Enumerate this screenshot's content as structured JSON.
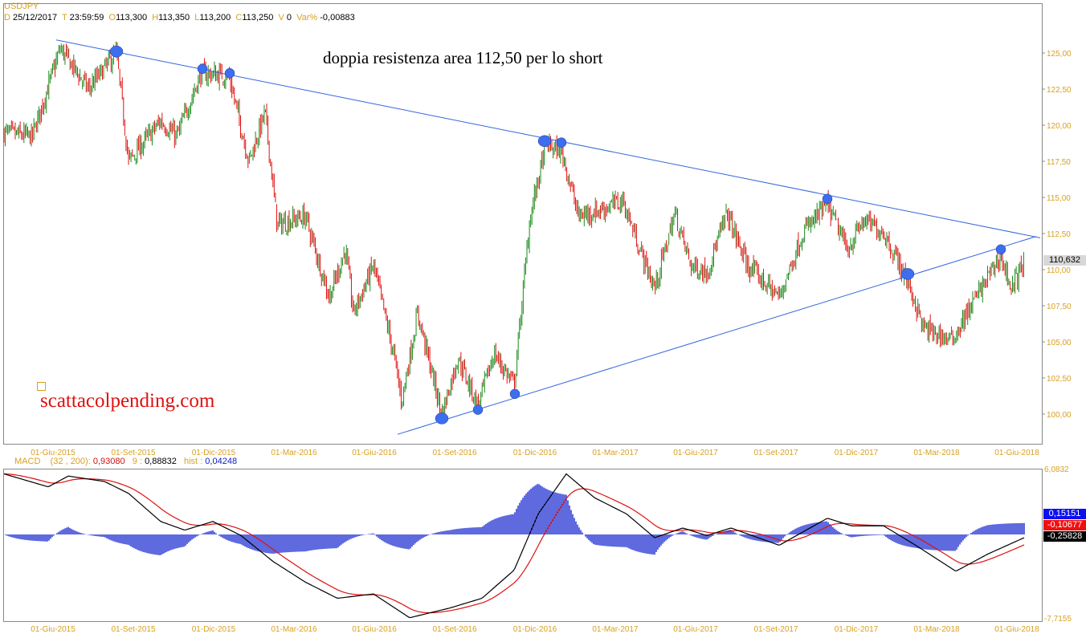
{
  "header": {
    "symbol": "USDJPY",
    "d_label": "D",
    "date": "25/12/2017",
    "t_label": "T",
    "time": "23:59:59",
    "o_label": "O",
    "open": "113,300",
    "h_label": "H",
    "high": "113,350",
    "l_label": "L",
    "low": "113,200",
    "c_label": "C",
    "close": "113,250",
    "v_label": "V",
    "volume": "0",
    "var_label": "Var%",
    "var": "-0,00883"
  },
  "macd_header": {
    "label": "MACD",
    "params": "(32 , 200):",
    "macd": "0,93080",
    "sig_label": "9 :",
    "signal": "0,88832",
    "hist_label": "hist :",
    "hist": "0,04248"
  },
  "annotation": "doppia resistenza area 112,50 per lo short",
  "watermark": "scattacolpending.com",
  "price_tag": "110,632",
  "macd_tags": {
    "hist": "0,15151",
    "signal": "-0,10677",
    "macd": "-0,25828"
  },
  "colors": {
    "up": "#1a8a1a",
    "down": "#e01010",
    "trend": "#3366dd",
    "circle": "#3d6ef0",
    "axis_text": "#d9a020"
  },
  "chart_data": {
    "type": "candlestick",
    "x_unit": "quarters since 01-Giu-2015",
    "x_ticks": [
      "01-Giu-2015",
      "01-Set-2015",
      "01-Dic-2015",
      "01-Mar-2016",
      "01-Giu-2016",
      "01-Set-2016",
      "01-Dic-2016",
      "01-Mar-2017",
      "01-Giu-2017",
      "01-Set-2017",
      "01-Dic-2017",
      "01-Mar-2018",
      "01-Giu-2018"
    ],
    "y_ticks": [
      "125,00",
      "122,50",
      "120,00",
      "117,50",
      "115,00",
      "112,50",
      "110,00",
      "107,50",
      "105,00",
      "102,50",
      "100,00"
    ],
    "ylim": [
      98.5,
      126.2
    ],
    "price_path": [
      [
        -0.61,
        119.5
      ],
      [
        -0.26,
        119.2
      ],
      [
        0.09,
        125.3
      ],
      [
        0.44,
        122.5
      ],
      [
        0.79,
        125
      ],
      [
        0.94,
        117.5
      ],
      [
        1.34,
        120.3
      ],
      [
        1.54,
        119.2
      ],
      [
        1.84,
        123.6
      ],
      [
        2.19,
        123.4
      ],
      [
        2.44,
        117.5
      ],
      [
        2.64,
        120.9
      ],
      [
        2.79,
        113.1
      ],
      [
        3.14,
        113.7
      ],
      [
        3.44,
        108.1
      ],
      [
        3.64,
        111.4
      ],
      [
        3.74,
        107
      ],
      [
        3.99,
        110.3
      ],
      [
        4.24,
        104.2
      ],
      [
        4.34,
        100.9
      ],
      [
        4.54,
        107
      ],
      [
        4.84,
        100
      ],
      [
        5.04,
        103.9
      ],
      [
        5.29,
        100.6
      ],
      [
        5.49,
        104.2
      ],
      [
        5.74,
        102
      ],
      [
        5.94,
        113.7
      ],
      [
        6.14,
        118.7
      ],
      [
        6.34,
        118.1
      ],
      [
        6.54,
        113.7
      ],
      [
        6.84,
        114.2
      ],
      [
        7.09,
        114.8
      ],
      [
        7.34,
        110.9
      ],
      [
        7.49,
        108.7
      ],
      [
        7.74,
        113.9
      ],
      [
        7.94,
        110.3
      ],
      [
        8.14,
        109.8
      ],
      [
        8.39,
        113.9
      ],
      [
        8.64,
        110.3
      ],
      [
        9.04,
        108.1
      ],
      [
        9.34,
        112.6
      ],
      [
        9.64,
        114.5
      ],
      [
        9.89,
        111.4
      ],
      [
        10.09,
        113.4
      ],
      [
        10.34,
        112.6
      ],
      [
        10.64,
        109.2
      ],
      [
        10.84,
        105.9
      ],
      [
        11.19,
        105.1
      ],
      [
        11.44,
        107.6
      ],
      [
        11.64,
        109.5
      ],
      [
        11.79,
        110.9
      ],
      [
        11.94,
        108.7
      ],
      [
        12.09,
        110.6
      ]
    ],
    "trendlines": [
      {
        "name": "resistance",
        "from": [
          0.04,
          125.9
        ],
        "to": [
          12.29,
          112.2
        ]
      },
      {
        "name": "support",
        "from": [
          4.29,
          98.6
        ],
        "to": [
          12.24,
          112.3
        ]
      }
    ],
    "touch_points": [
      [
        0.79,
        125.1
      ],
      [
        1.86,
        123.9
      ],
      [
        2.2,
        123.6
      ],
      [
        4.84,
        99.7
      ],
      [
        5.29,
        100.3
      ],
      [
        5.75,
        101.4
      ],
      [
        6.12,
        118.9
      ],
      [
        6.33,
        118.8
      ],
      [
        9.64,
        114.9
      ],
      [
        10.64,
        109.7
      ],
      [
        11.8,
        111.4
      ]
    ],
    "macd": {
      "ylim": [
        -7.7155,
        6.0832
      ],
      "axis_labels": [
        "6,0832",
        "-7,7155"
      ],
      "path": [
        [
          -0.61,
          5.6
        ],
        [
          -0.06,
          4.4
        ],
        [
          0.19,
          5.4
        ],
        [
          0.64,
          4.9
        ],
        [
          0.94,
          3.8
        ],
        [
          1.34,
          1.2
        ],
        [
          1.64,
          0.4
        ],
        [
          1.99,
          1.2
        ],
        [
          2.34,
          -0.1
        ],
        [
          2.74,
          -2.5
        ],
        [
          3.14,
          -4.4
        ],
        [
          3.54,
          -5.9
        ],
        [
          3.99,
          -5.5
        ],
        [
          4.44,
          -7.7
        ],
        [
          4.94,
          -6.8
        ],
        [
          5.34,
          -5.9
        ],
        [
          5.74,
          -3.3
        ],
        [
          6.04,
          1.9
        ],
        [
          6.39,
          5.6
        ],
        [
          6.74,
          3.4
        ],
        [
          7.14,
          1.9
        ],
        [
          7.49,
          -0.3
        ],
        [
          7.84,
          0.6
        ],
        [
          8.14,
          -0.1
        ],
        [
          8.44,
          0.6
        ],
        [
          9.04,
          -1.0
        ],
        [
          9.64,
          1.5
        ],
        [
          9.94,
          0.8
        ],
        [
          10.34,
          0.8
        ],
        [
          10.74,
          -1.0
        ],
        [
          11.24,
          -3.4
        ],
        [
          11.64,
          -1.8
        ],
        [
          12.09,
          -0.3
        ]
      ]
    }
  }
}
